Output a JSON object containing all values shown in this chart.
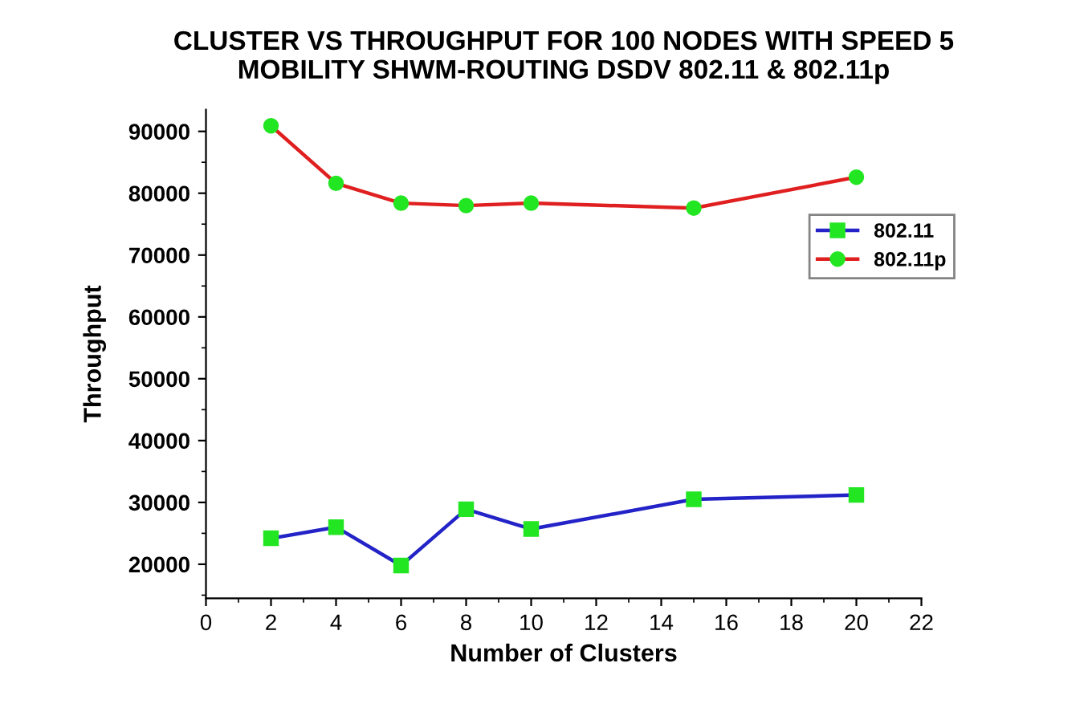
{
  "chart_data": {
    "type": "line",
    "title": "CLUSTER VS THROUGHPUT FOR 100 NODES WITH SPEED 5\nMOBILITY SHWM-ROUTING DSDV 802.11 & 802.11p",
    "xlabel": "Number of Clusters",
    "ylabel": "Throughput",
    "x": [
      2,
      4,
      6,
      8,
      10,
      15,
      20
    ],
    "series": [
      {
        "name": "802.11",
        "color": "#2323c8",
        "marker": "square",
        "values": [
          24200,
          26000,
          19800,
          28900,
          25700,
          30500,
          31200
        ]
      },
      {
        "name": "802.11p",
        "color": "#e02020",
        "marker": "circle",
        "values": [
          90900,
          81600,
          78400,
          78000,
          78400,
          77600,
          82600
        ]
      }
    ],
    "xlim": [
      0,
      22
    ],
    "xticks": [
      0,
      2,
      4,
      6,
      8,
      10,
      12,
      14,
      16,
      18,
      20,
      22
    ],
    "ylim": [
      14500,
      93500
    ],
    "yticks": [
      20000,
      30000,
      40000,
      50000,
      60000,
      70000,
      80000,
      90000
    ],
    "grid": false,
    "legend": "right",
    "line_style": "solid"
  }
}
